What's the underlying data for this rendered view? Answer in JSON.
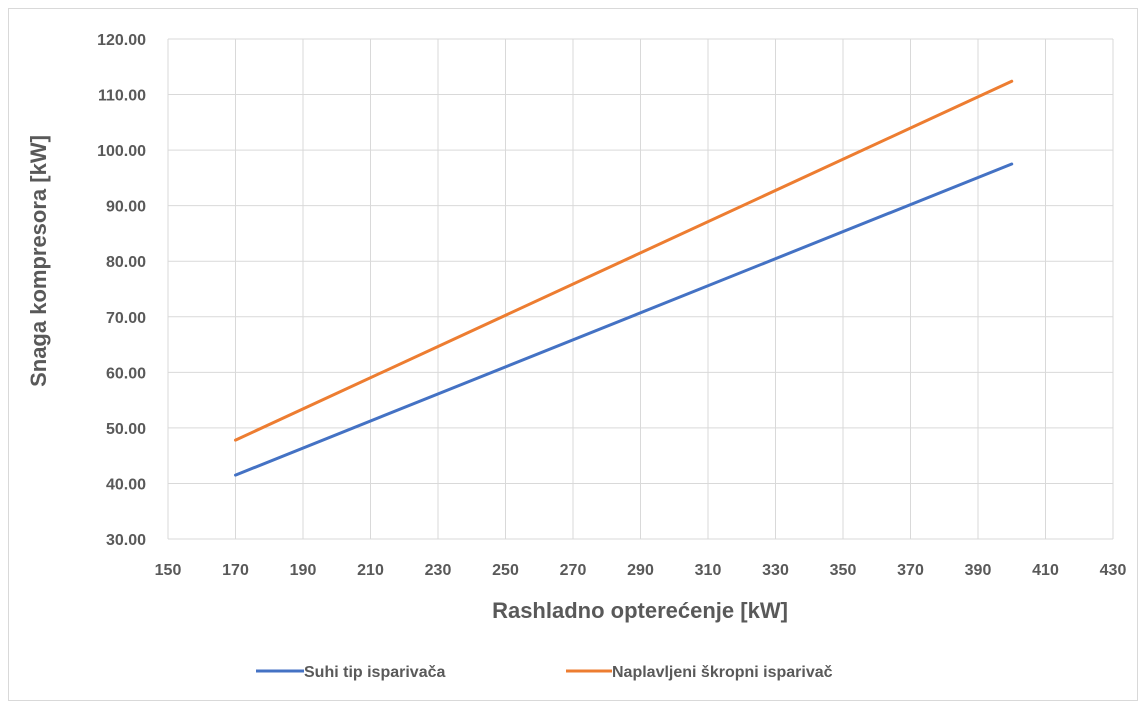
{
  "chart_data": {
    "type": "line",
    "title": "",
    "xlabel": "Rashladno opterećenje [kW]",
    "ylabel": "Snaga kompresora [kW]",
    "xlim": [
      150,
      430
    ],
    "ylim": [
      30,
      120
    ],
    "x_ticks": [
      150,
      170,
      190,
      210,
      230,
      250,
      270,
      290,
      310,
      330,
      350,
      370,
      390,
      410,
      430
    ],
    "x_tick_labels": [
      "150",
      "170",
      "190",
      "210",
      "230",
      "250",
      "270",
      "290",
      "310",
      "330",
      "350",
      "370",
      "390",
      "410",
      "430"
    ],
    "y_ticks": [
      30,
      40,
      50,
      60,
      70,
      80,
      90,
      100,
      110,
      120
    ],
    "y_tick_labels": [
      "30.00",
      "40.00",
      "50.00",
      "60.00",
      "70.00",
      "80.00",
      "90.00",
      "100.00",
      "110.00",
      "120.00"
    ],
    "grid": true,
    "legend_position": "bottom",
    "series": [
      {
        "name": "Suhi tip isparivača",
        "color": "#4472C4",
        "x": [
          170,
          400
        ],
        "y": [
          41.5,
          97.5
        ]
      },
      {
        "name": "Naplavljeni škropni isparivač",
        "color": "#ED7D31",
        "x": [
          170,
          400
        ],
        "y": [
          47.8,
          112.4
        ]
      }
    ]
  }
}
